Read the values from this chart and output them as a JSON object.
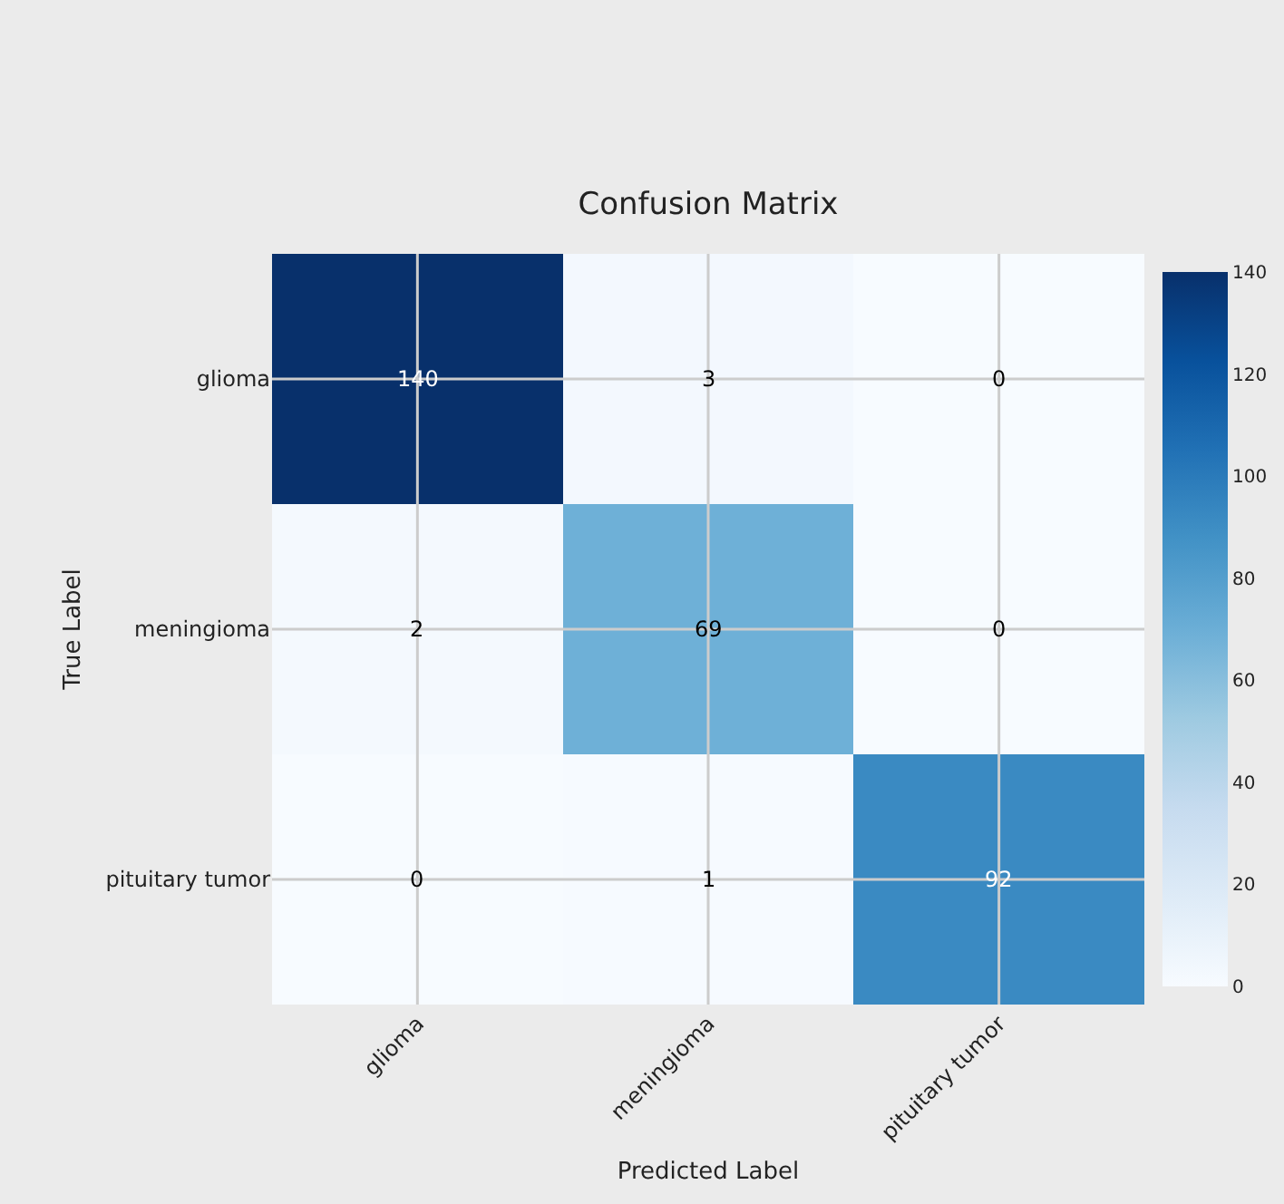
{
  "chart_data": {
    "type": "heatmap",
    "title": "Confusion Matrix",
    "xlabel": "Predicted Label",
    "ylabel": "True Label",
    "categories": [
      "glioma",
      "meningioma",
      "pituitary tumor"
    ],
    "y_categories": [
      "glioma",
      "meningioma",
      "pituitary tumor"
    ],
    "cells": [
      [
        140,
        3,
        0
      ],
      [
        2,
        69,
        0
      ],
      [
        0,
        1,
        92
      ]
    ],
    "clim": [
      0,
      140
    ],
    "cticks": [
      0,
      20,
      40,
      60,
      80,
      100,
      120,
      140
    ],
    "grid": true,
    "data_labels": true
  }
}
